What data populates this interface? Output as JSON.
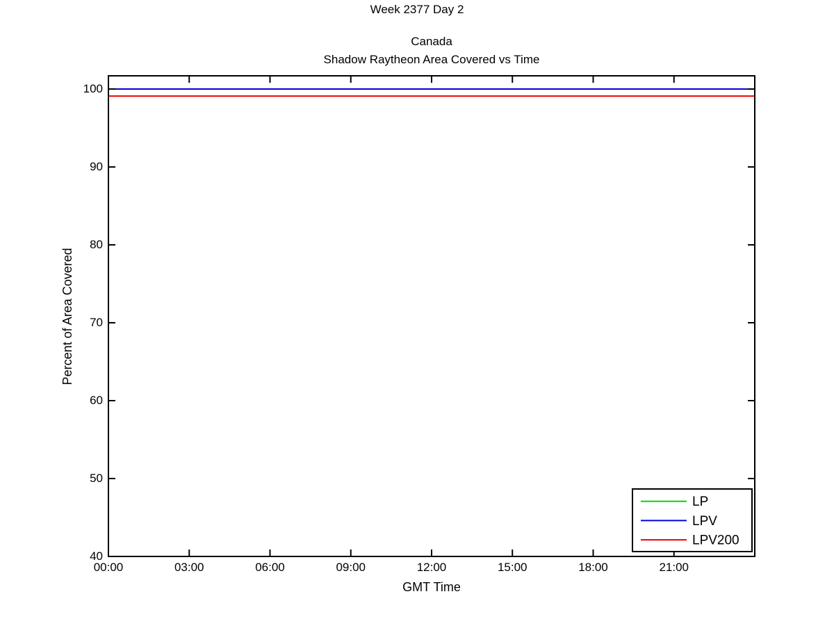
{
  "figure": {
    "background_color": "#ffffff",
    "text_color": "#000000"
  },
  "chart_data": {
    "type": "line",
    "suptitle": "Week 2377 Day 2",
    "title_lines": [
      "Canada",
      "Shadow Raytheon Area Covered vs Time"
    ],
    "xlabel": "GMT Time",
    "ylabel": "Percent of Area Covered",
    "xlim_hours": [
      0,
      24
    ],
    "ylim": [
      40,
      101.7
    ],
    "x_ticks_hours": [
      0,
      3,
      6,
      9,
      12,
      15,
      18,
      21
    ],
    "x_tick_labels": [
      "00:00",
      "03:00",
      "06:00",
      "09:00",
      "12:00",
      "15:00",
      "18:00",
      "21:00"
    ],
    "y_ticks": [
      40,
      50,
      60,
      70,
      80,
      90,
      100
    ],
    "y_tick_labels": [
      "40",
      "50",
      "60",
      "70",
      "80",
      "90",
      "100"
    ],
    "grid": false,
    "legend_position": "lower right",
    "axis_color": "#000000",
    "series": [
      {
        "name": "LP",
        "color": "#00DC00",
        "constant_value": 100,
        "x_range_hours": [
          0,
          24
        ],
        "note": "hidden beneath LPV line"
      },
      {
        "name": "LPV",
        "color": "#0000DC",
        "constant_value": 100,
        "x_range_hours": [
          0,
          24
        ]
      },
      {
        "name": "LPV200",
        "color": "#EE0000",
        "constant_value": 99.1,
        "x_range_hours": [
          0,
          24
        ]
      }
    ]
  }
}
